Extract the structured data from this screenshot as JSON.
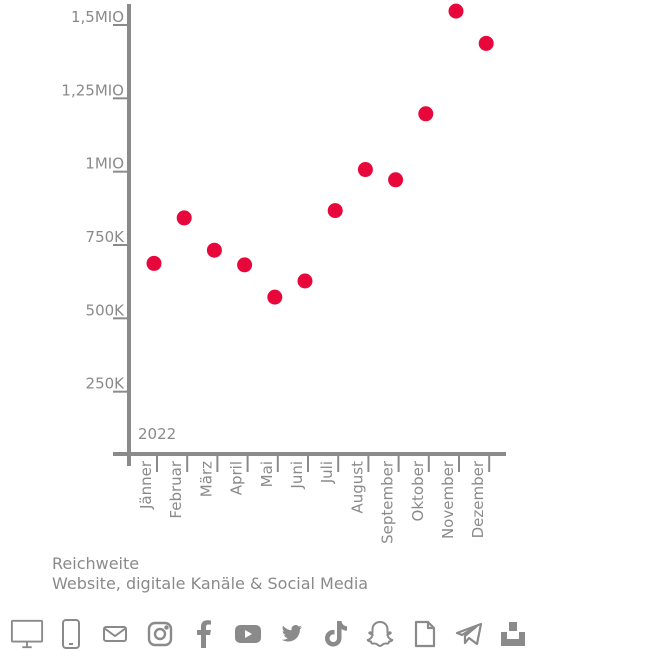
{
  "chart_data": {
    "type": "scatter",
    "title": "",
    "xlabel": "",
    "ylabel": "",
    "year_label": "2022",
    "categories": [
      "Jänner",
      "Februar",
      "März",
      "April",
      "Mai",
      "Juni",
      "Juli",
      "August",
      "September",
      "Oktober",
      "November",
      "Dezember"
    ],
    "values": [
      660000,
      815000,
      705000,
      655000,
      545000,
      600000,
      840000,
      980000,
      945000,
      1170000,
      1520000,
      1410000
    ],
    "yticks": [
      {
        "value": 250000,
        "label": "250K"
      },
      {
        "value": 500000,
        "label": "500K"
      },
      {
        "value": 750000,
        "label": "750K"
      },
      {
        "value": 1000000,
        "label": "1MIO"
      },
      {
        "value": 1250000,
        "label": "1,25MIO"
      },
      {
        "value": 1500000,
        "label": "1,5MIO"
      }
    ],
    "ylim": [
      0,
      1500000
    ],
    "grid": false,
    "legend": "none",
    "point_color": "#e8073a",
    "axis_color": "#8a8a8a"
  },
  "caption": {
    "line1": "Reichweite",
    "line2": "Website, digitale Kanäle & Social Media"
  },
  "icons": [
    "desktop-icon",
    "mobile-icon",
    "mail-icon",
    "instagram-icon",
    "facebook-icon",
    "youtube-icon",
    "twitter-icon",
    "tiktok-icon",
    "snapchat-icon",
    "document-icon",
    "telegram-icon",
    "print-icon"
  ]
}
